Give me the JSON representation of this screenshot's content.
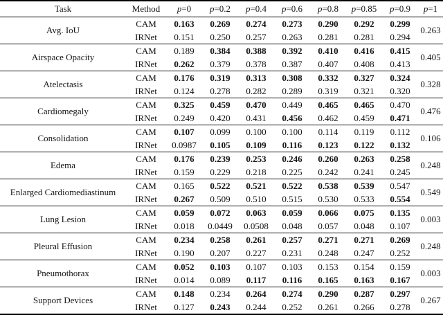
{
  "table": {
    "columns": [
      {
        "text": "Task"
      },
      {
        "text": "Method"
      },
      {
        "sym": "p",
        "rest": "=0"
      },
      {
        "sym": "p",
        "rest": "=0.2"
      },
      {
        "sym": "p",
        "rest": "=0.4"
      },
      {
        "sym": "p",
        "rest": "=0.6"
      },
      {
        "sym": "p",
        "rest": "=0.8"
      },
      {
        "sym": "p",
        "rest": "=0.85"
      },
      {
        "sym": "p",
        "rest": "=0.9"
      },
      {
        "sym": "p",
        "rest": "=1"
      }
    ],
    "groups": [
      {
        "task": "Avg. IoU",
        "p1": "0.263",
        "rows": [
          {
            "method": "CAM",
            "values": [
              "0.163",
              "0.269",
              "0.274",
              "0.273",
              "0.290",
              "0.292",
              "0.299"
            ],
            "bold": [
              1,
              1,
              1,
              1,
              1,
              1,
              1
            ]
          },
          {
            "method": "IRNet",
            "values": [
              "0.151",
              "0.250",
              "0.257",
              "0.263",
              "0.281",
              "0.281",
              "0.294"
            ],
            "bold": [
              0,
              0,
              0,
              0,
              0,
              0,
              0
            ]
          }
        ]
      },
      {
        "task": "Airspace Opacity",
        "p1": "0.405",
        "rows": [
          {
            "method": "CAM",
            "values": [
              "0.189",
              "0.384",
              "0.388",
              "0.392",
              "0.410",
              "0.416",
              "0.415"
            ],
            "bold": [
              0,
              1,
              1,
              1,
              1,
              1,
              1
            ]
          },
          {
            "method": "IRNet",
            "values": [
              "0.262",
              "0.379",
              "0.378",
              "0.387",
              "0.407",
              "0.408",
              "0.413"
            ],
            "bold": [
              1,
              0,
              0,
              0,
              0,
              0,
              0
            ]
          }
        ]
      },
      {
        "task": "Atelectasis",
        "p1": "0.328",
        "rows": [
          {
            "method": "CAM",
            "values": [
              "0.176",
              "0.319",
              "0.313",
              "0.308",
              "0.332",
              "0.327",
              "0.324"
            ],
            "bold": [
              1,
              1,
              1,
              1,
              1,
              1,
              1
            ]
          },
          {
            "method": "IRNet",
            "values": [
              "0.124",
              "0.278",
              "0.282",
              "0.289",
              "0.319",
              "0.321",
              "0.320"
            ],
            "bold": [
              0,
              0,
              0,
              0,
              0,
              0,
              0
            ]
          }
        ]
      },
      {
        "task": "Cardiomegaly",
        "p1": "0.476",
        "rows": [
          {
            "method": "CAM",
            "values": [
              "0.325",
              "0.459",
              "0.470",
              "0.449",
              "0.465",
              "0.465",
              "0.470"
            ],
            "bold": [
              1,
              1,
              1,
              0,
              1,
              1,
              0
            ]
          },
          {
            "method": "IRNet",
            "values": [
              "0.249",
              "0.420",
              "0.431",
              "0.456",
              "0.462",
              "0.459",
              "0.471"
            ],
            "bold": [
              0,
              0,
              0,
              1,
              0,
              0,
              1
            ]
          }
        ]
      },
      {
        "task": "Consolidation",
        "p1": "0.106",
        "rows": [
          {
            "method": "CAM",
            "values": [
              "0.107",
              "0.099",
              "0.100",
              "0.100",
              "0.114",
              "0.119",
              "0.112"
            ],
            "bold": [
              1,
              0,
              0,
              0,
              0,
              0,
              0
            ]
          },
          {
            "method": "IRNet",
            "values": [
              "0.0987",
              "0.105",
              "0.109",
              "0.116",
              "0.123",
              "0.122",
              "0.132"
            ],
            "bold": [
              0,
              1,
              1,
              1,
              1,
              1,
              1
            ]
          }
        ]
      },
      {
        "task": "Edema",
        "p1": "0.248",
        "rows": [
          {
            "method": "CAM",
            "values": [
              "0.176",
              "0.239",
              "0.253",
              "0.246",
              "0.260",
              "0.263",
              "0.258"
            ],
            "bold": [
              1,
              1,
              1,
              1,
              1,
              1,
              1
            ]
          },
          {
            "method": "IRNet",
            "values": [
              "0.159",
              "0.229",
              "0.218",
              "0.225",
              "0.242",
              "0.241",
              "0.245"
            ],
            "bold": [
              0,
              0,
              0,
              0,
              0,
              0,
              0
            ]
          }
        ]
      },
      {
        "task": "Enlarged Cardiomediastinum",
        "p1": "0.549",
        "rows": [
          {
            "method": "CAM",
            "values": [
              "0.165",
              "0.522",
              "0.521",
              "0.522",
              "0.538",
              "0.539",
              "0.547"
            ],
            "bold": [
              0,
              1,
              1,
              1,
              1,
              1,
              0
            ]
          },
          {
            "method": "IRNet",
            "values": [
              "0.267",
              "0.509",
              "0.510",
              "0.515",
              "0.530",
              "0.533",
              "0.554"
            ],
            "bold": [
              1,
              0,
              0,
              0,
              0,
              0,
              1
            ]
          }
        ]
      },
      {
        "task": "Lung Lesion",
        "p1": "0.003",
        "rows": [
          {
            "method": "CAM",
            "values": [
              "0.059",
              "0.072",
              "0.063",
              "0.059",
              "0.066",
              "0.075",
              "0.135"
            ],
            "bold": [
              1,
              1,
              1,
              1,
              1,
              1,
              1
            ]
          },
          {
            "method": "IRNet",
            "values": [
              "0.018",
              "0.0449",
              "0.0508",
              "0.048",
              "0.057",
              "0.048",
              "0.107"
            ],
            "bold": [
              0,
              0,
              0,
              0,
              0,
              0,
              0
            ]
          }
        ]
      },
      {
        "task": "Pleural Effusion",
        "p1": "0.248",
        "rows": [
          {
            "method": "CAM",
            "values": [
              "0.234",
              "0.258",
              "0.261",
              "0.257",
              "0.271",
              "0.271",
              "0.269"
            ],
            "bold": [
              1,
              1,
              1,
              1,
              1,
              1,
              1
            ]
          },
          {
            "method": "IRNet",
            "values": [
              "0.190",
              "0.207",
              "0.227",
              "0.231",
              "0.248",
              "0.247",
              "0.252"
            ],
            "bold": [
              0,
              0,
              0,
              0,
              0,
              0,
              0
            ]
          }
        ]
      },
      {
        "task": "Pneumothorax",
        "p1": "0.003",
        "rows": [
          {
            "method": "CAM",
            "values": [
              "0.052",
              "0.103",
              "0.107",
              "0.103",
              "0.153",
              "0.154",
              "0.159"
            ],
            "bold": [
              1,
              1,
              0,
              0,
              0,
              0,
              0
            ]
          },
          {
            "method": "IRNet",
            "values": [
              "0.014",
              "0.089",
              "0.117",
              "0.116",
              "0.165",
              "0.163",
              "0.167"
            ],
            "bold": [
              0,
              0,
              1,
              1,
              1,
              1,
              1
            ]
          }
        ]
      },
      {
        "task": "Support Devices",
        "p1": "0.267",
        "rows": [
          {
            "method": "CAM",
            "values": [
              "0.148",
              "0.234",
              "0.264",
              "0.274",
              "0.290",
              "0.287",
              "0.297"
            ],
            "bold": [
              1,
              0,
              1,
              1,
              1,
              1,
              1
            ]
          },
          {
            "method": "IRNet",
            "values": [
              "0.127",
              "0.243",
              "0.244",
              "0.252",
              "0.261",
              "0.266",
              "0.278"
            ],
            "bold": [
              0,
              1,
              0,
              0,
              0,
              0,
              0
            ]
          }
        ]
      }
    ]
  }
}
